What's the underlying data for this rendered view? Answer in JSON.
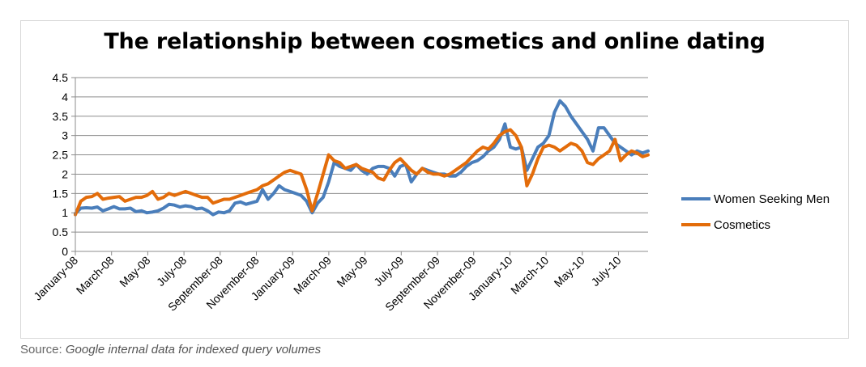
{
  "chart_data": {
    "type": "line",
    "title": "The relationship between cosmetics and online dating",
    "xlabel": "",
    "ylabel": "",
    "ylim": [
      0,
      4.5
    ],
    "yticks": [
      "0",
      "0.5",
      "1",
      "1.5",
      "2",
      "2.5",
      "3",
      "3.5",
      "4",
      "4.5"
    ],
    "xticks": [
      "January-08",
      "March-08",
      "May-08",
      "July-08",
      "September-08",
      "November-08",
      "January-09",
      "March-09",
      "May-09",
      "July-09",
      "September-09",
      "November-09",
      "January-10",
      "March-10",
      "May-10",
      "July-10"
    ],
    "grid": true,
    "legend_position": "right",
    "series": [
      {
        "name": "Women Seeking Men",
        "color": "#4a7ebb",
        "values": [
          0.98,
          1.12,
          1.13,
          1.12,
          1.15,
          1.05,
          1.1,
          1.16,
          1.1,
          1.1,
          1.12,
          1.03,
          1.05,
          1.0,
          1.02,
          1.05,
          1.12,
          1.22,
          1.2,
          1.15,
          1.18,
          1.16,
          1.1,
          1.12,
          1.05,
          0.95,
          1.02,
          1.0,
          1.05,
          1.25,
          1.28,
          1.22,
          1.26,
          1.3,
          1.6,
          1.35,
          1.5,
          1.7,
          1.6,
          1.55,
          1.5,
          1.45,
          1.3,
          1.0,
          1.25,
          1.4,
          1.8,
          2.3,
          2.2,
          2.15,
          2.1,
          2.25,
          2.1,
          2.0,
          2.15,
          2.2,
          2.2,
          2.15,
          1.95,
          2.2,
          2.25,
          1.8,
          2.0,
          2.15,
          2.1,
          2.05,
          2.0,
          2.0,
          1.95,
          1.95,
          2.05,
          2.2,
          2.3,
          2.35,
          2.45,
          2.6,
          2.7,
          2.9,
          3.3,
          2.7,
          2.65,
          2.7,
          2.1,
          2.4,
          2.7,
          2.8,
          3.0,
          3.6,
          3.9,
          3.75,
          3.5,
          3.3,
          3.1,
          2.9,
          2.6,
          3.2,
          3.2,
          3.0,
          2.8,
          2.7,
          2.6,
          2.5,
          2.6,
          2.55,
          2.6
        ]
      },
      {
        "name": "Cosmetics",
        "color": "#e36c0a",
        "values": [
          0.95,
          1.3,
          1.4,
          1.42,
          1.5,
          1.35,
          1.38,
          1.4,
          1.42,
          1.3,
          1.35,
          1.4,
          1.4,
          1.45,
          1.55,
          1.35,
          1.4,
          1.5,
          1.45,
          1.5,
          1.55,
          1.5,
          1.45,
          1.4,
          1.4,
          1.25,
          1.3,
          1.35,
          1.35,
          1.4,
          1.45,
          1.5,
          1.55,
          1.6,
          1.7,
          1.75,
          1.85,
          1.95,
          2.05,
          2.1,
          2.05,
          2.0,
          1.6,
          1.05,
          1.5,
          2.0,
          2.5,
          2.35,
          2.3,
          2.15,
          2.2,
          2.25,
          2.15,
          2.1,
          2.05,
          1.9,
          1.85,
          2.1,
          2.3,
          2.4,
          2.25,
          2.1,
          2.0,
          2.15,
          2.05,
          2.0,
          2.0,
          1.95,
          2.0,
          2.1,
          2.2,
          2.3,
          2.45,
          2.6,
          2.7,
          2.65,
          2.8,
          3.0,
          3.1,
          3.15,
          3.0,
          2.7,
          1.7,
          2.0,
          2.4,
          2.7,
          2.75,
          2.7,
          2.6,
          2.7,
          2.8,
          2.75,
          2.6,
          2.3,
          2.25,
          2.4,
          2.5,
          2.6,
          2.9,
          2.35,
          2.5,
          2.6,
          2.55,
          2.45,
          2.5
        ]
      }
    ]
  },
  "source": {
    "label": "Source:",
    "text": "Google internal data for indexed query volumes"
  }
}
